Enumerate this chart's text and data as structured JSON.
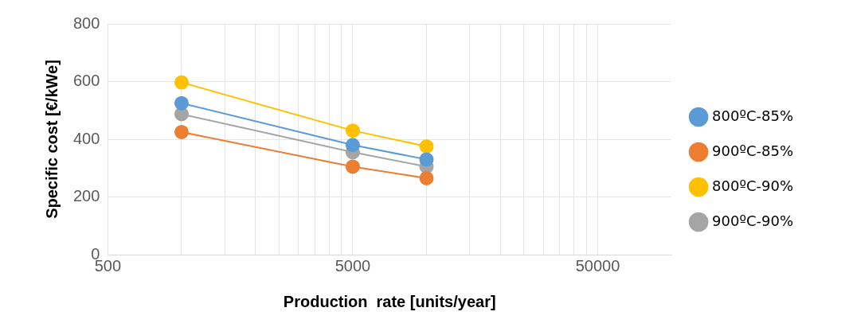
{
  "chart_data": {
    "type": "line",
    "xlabel": "Production  rate [units/year]",
    "ylabel": "Specific cost [€/kWe]",
    "log": "x",
    "x": [
      1000,
      5000,
      10000
    ],
    "xlim": [
      500,
      100000
    ],
    "xticks": [
      500,
      {
        "value": 1000,
        "label": null
      },
      {
        "value": 1500,
        "label": null
      },
      {
        "value": 2000,
        "label": null
      },
      {
        "value": 2500,
        "label": null
      },
      {
        "value": 3000,
        "label": null
      },
      {
        "value": 3500,
        "label": null
      },
      {
        "value": 4000,
        "label": null
      },
      {
        "value": 4500,
        "label": null
      },
      5000,
      {
        "value": 10000,
        "label": null
      },
      {
        "value": 15000,
        "label": null
      },
      {
        "value": 20000,
        "label": null
      },
      {
        "value": 25000,
        "label": null
      },
      {
        "value": 30000,
        "label": null
      },
      {
        "value": 35000,
        "label": null
      },
      {
        "value": 40000,
        "label": null
      },
      {
        "value": 45000,
        "label": null
      },
      50000
    ],
    "ylim": [
      0,
      800
    ],
    "yticks": [
      0,
      200,
      400,
      600,
      800
    ],
    "grid": true,
    "legend": "right",
    "marker": "circle",
    "series": [
      {
        "name": "800ºC-85%",
        "color": "#5b9bd5",
        "values": [
          525,
          380,
          330
        ]
      },
      {
        "name": "900ºC-85%",
        "color": "#ed7d31",
        "values": [
          425,
          305,
          265
        ]
      },
      {
        "name": "800ºC-90%",
        "color": "#ffc000",
        "values": [
          597,
          430,
          375
        ]
      },
      {
        "name": "900ºC-90%",
        "color": "#a5a5a5",
        "values": [
          487,
          355,
          305
        ]
      }
    ]
  }
}
